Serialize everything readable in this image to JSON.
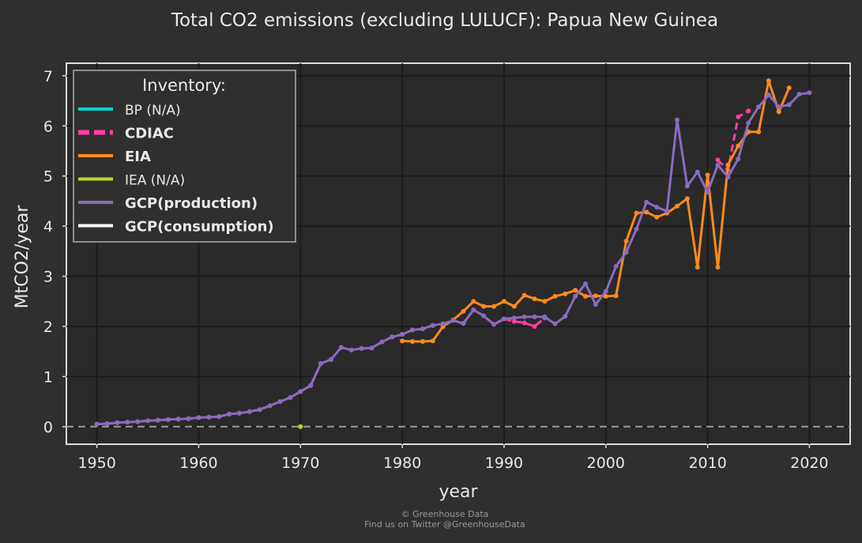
{
  "chart_data": {
    "type": "line",
    "title": "Total CO2 emissions (excluding LULUCF): Papua New Guinea",
    "xlabel": "year",
    "ylabel": "MtCO2/year",
    "xlim": [
      1947,
      2024
    ],
    "ylim": [
      -0.35,
      7.25
    ],
    "x_ticks": [
      "1950",
      "1960",
      "1970",
      "1980",
      "1990",
      "2000",
      "2010",
      "2020"
    ],
    "y_ticks": [
      "0",
      "1",
      "2",
      "3",
      "4",
      "5",
      "6",
      "7"
    ],
    "grid": true,
    "zero_line": true,
    "legend": {
      "title": "Inventory:",
      "placement": "top-left",
      "items": [
        {
          "label": "BP (N/A)",
          "color": "#00d5d5",
          "bold": false,
          "dashed": false
        },
        {
          "label": "CDIAC",
          "color": "#ff3fa4",
          "bold": true,
          "dashed": true
        },
        {
          "label": "EIA",
          "color": "#ff8a1f",
          "bold": true,
          "dashed": false
        },
        {
          "label": "IEA (N/A)",
          "color": "#b7d82a",
          "bold": false,
          "dashed": false
        },
        {
          "label": "GCP(production)",
          "color": "#8a6bbf",
          "bold": true,
          "dashed": false
        },
        {
          "label": "GCP(consumption)",
          "color": "#ffffff",
          "bold": true,
          "dashed": false
        }
      ]
    },
    "series": [
      {
        "name": "CDIAC",
        "color": "#ff3fa4",
        "dashed": true,
        "points": [
          [
            1950,
            0.05
          ],
          [
            1951,
            0.06
          ],
          [
            1952,
            0.08
          ],
          [
            1953,
            0.09
          ],
          [
            1954,
            0.1
          ],
          [
            1955,
            0.12
          ],
          [
            1956,
            0.13
          ],
          [
            1957,
            0.14
          ],
          [
            1958,
            0.15
          ],
          [
            1959,
            0.16
          ],
          [
            1960,
            0.18
          ],
          [
            1961,
            0.19
          ],
          [
            1962,
            0.2
          ],
          [
            1963,
            0.25
          ],
          [
            1964,
            0.27
          ],
          [
            1965,
            0.3
          ],
          [
            1966,
            0.34
          ],
          [
            1967,
            0.42
          ],
          [
            1968,
            0.5
          ],
          [
            1969,
            0.58
          ],
          [
            1970,
            0.7
          ],
          [
            1971,
            0.82
          ],
          [
            1972,
            1.26
          ],
          [
            1973,
            1.34
          ],
          [
            1974,
            1.58
          ],
          [
            1975,
            1.53
          ],
          [
            1976,
            1.56
          ],
          [
            1977,
            1.57
          ],
          [
            1978,
            1.69
          ],
          [
            1979,
            1.79
          ],
          [
            1980,
            1.84
          ],
          [
            1981,
            1.93
          ],
          [
            1982,
            1.95
          ],
          [
            1983,
            2.02
          ],
          [
            1984,
            2.05
          ],
          [
            1985,
            2.12
          ],
          [
            1986,
            2.06
          ],
          [
            1987,
            2.33
          ],
          [
            1988,
            2.21
          ],
          [
            1989,
            2.04
          ],
          [
            1990,
            2.15
          ],
          [
            1991,
            2.1
          ],
          [
            1992,
            2.07
          ],
          [
            1993,
            2.0
          ],
          [
            1994,
            2.17
          ],
          [
            2011,
            5.32
          ],
          [
            2012,
            5.12
          ],
          [
            2013,
            6.18
          ],
          [
            2014,
            6.3
          ]
        ]
      },
      {
        "name": "EIA",
        "color": "#ff8a1f",
        "dashed": false,
        "points": [
          [
            1980,
            1.71
          ],
          [
            1981,
            1.7
          ],
          [
            1982,
            1.7
          ],
          [
            1983,
            1.71
          ],
          [
            1984,
            2.0
          ],
          [
            1985,
            2.13
          ],
          [
            1986,
            2.3
          ],
          [
            1987,
            2.5
          ],
          [
            1988,
            2.4
          ],
          [
            1989,
            2.4
          ],
          [
            1990,
            2.5
          ],
          [
            1991,
            2.4
          ],
          [
            1992,
            2.62
          ],
          [
            1993,
            2.55
          ],
          [
            1994,
            2.5
          ],
          [
            1995,
            2.6
          ],
          [
            1996,
            2.65
          ],
          [
            1997,
            2.72
          ],
          [
            1998,
            2.6
          ],
          [
            1999,
            2.61
          ],
          [
            2000,
            2.6
          ],
          [
            2001,
            2.61
          ],
          [
            2002,
            3.7
          ],
          [
            2003,
            4.26
          ],
          [
            2004,
            4.28
          ],
          [
            2005,
            4.18
          ],
          [
            2006,
            4.26
          ],
          [
            2007,
            4.4
          ],
          [
            2008,
            4.55
          ],
          [
            2009,
            3.18
          ],
          [
            2010,
            5.02
          ],
          [
            2011,
            3.18
          ],
          [
            2012,
            5.22
          ],
          [
            2013,
            5.6
          ],
          [
            2014,
            5.88
          ],
          [
            2015,
            5.88
          ],
          [
            2016,
            6.9
          ],
          [
            2017,
            6.28
          ],
          [
            2018,
            6.76
          ]
        ]
      },
      {
        "name": "IEA",
        "color": "#b7d82a",
        "dashed": false,
        "points": [
          [
            1970,
            0.0
          ]
        ]
      },
      {
        "name": "GCP(production)",
        "color": "#8a6bbf",
        "dashed": false,
        "points": [
          [
            1950,
            0.05
          ],
          [
            1951,
            0.06
          ],
          [
            1952,
            0.08
          ],
          [
            1953,
            0.09
          ],
          [
            1954,
            0.1
          ],
          [
            1955,
            0.12
          ],
          [
            1956,
            0.13
          ],
          [
            1957,
            0.14
          ],
          [
            1958,
            0.15
          ],
          [
            1959,
            0.16
          ],
          [
            1960,
            0.18
          ],
          [
            1961,
            0.19
          ],
          [
            1962,
            0.2
          ],
          [
            1963,
            0.25
          ],
          [
            1964,
            0.27
          ],
          [
            1965,
            0.3
          ],
          [
            1966,
            0.34
          ],
          [
            1967,
            0.42
          ],
          [
            1968,
            0.5
          ],
          [
            1969,
            0.58
          ],
          [
            1970,
            0.7
          ],
          [
            1971,
            0.82
          ],
          [
            1972,
            1.26
          ],
          [
            1973,
            1.34
          ],
          [
            1974,
            1.58
          ],
          [
            1975,
            1.53
          ],
          [
            1976,
            1.56
          ],
          [
            1977,
            1.57
          ],
          [
            1978,
            1.69
          ],
          [
            1979,
            1.79
          ],
          [
            1980,
            1.84
          ],
          [
            1981,
            1.93
          ],
          [
            1982,
            1.95
          ],
          [
            1983,
            2.02
          ],
          [
            1984,
            2.05
          ],
          [
            1985,
            2.12
          ],
          [
            1986,
            2.06
          ],
          [
            1987,
            2.33
          ],
          [
            1988,
            2.21
          ],
          [
            1989,
            2.04
          ],
          [
            1990,
            2.15
          ],
          [
            1991,
            2.17
          ],
          [
            1992,
            2.19
          ],
          [
            1993,
            2.19
          ],
          [
            1994,
            2.19
          ],
          [
            1995,
            2.05
          ],
          [
            1996,
            2.2
          ],
          [
            1997,
            2.6
          ],
          [
            1998,
            2.85
          ],
          [
            1999,
            2.44
          ],
          [
            2000,
            2.7
          ],
          [
            2001,
            3.2
          ],
          [
            2002,
            3.48
          ],
          [
            2003,
            3.94
          ],
          [
            2004,
            4.48
          ],
          [
            2005,
            4.38
          ],
          [
            2006,
            4.3
          ],
          [
            2007,
            6.12
          ],
          [
            2008,
            4.8
          ],
          [
            2009,
            5.08
          ],
          [
            2010,
            4.68
          ],
          [
            2011,
            5.22
          ],
          [
            2012,
            4.98
          ],
          [
            2013,
            5.34
          ],
          [
            2014,
            6.06
          ],
          [
            2015,
            6.38
          ],
          [
            2016,
            6.62
          ],
          [
            2017,
            6.38
          ],
          [
            2018,
            6.42
          ],
          [
            2019,
            6.63
          ],
          [
            2020,
            6.66
          ]
        ]
      }
    ]
  },
  "credits": {
    "line1": "© Greenhouse Data",
    "line2": "Find us on Twitter @GreenhouseData"
  }
}
